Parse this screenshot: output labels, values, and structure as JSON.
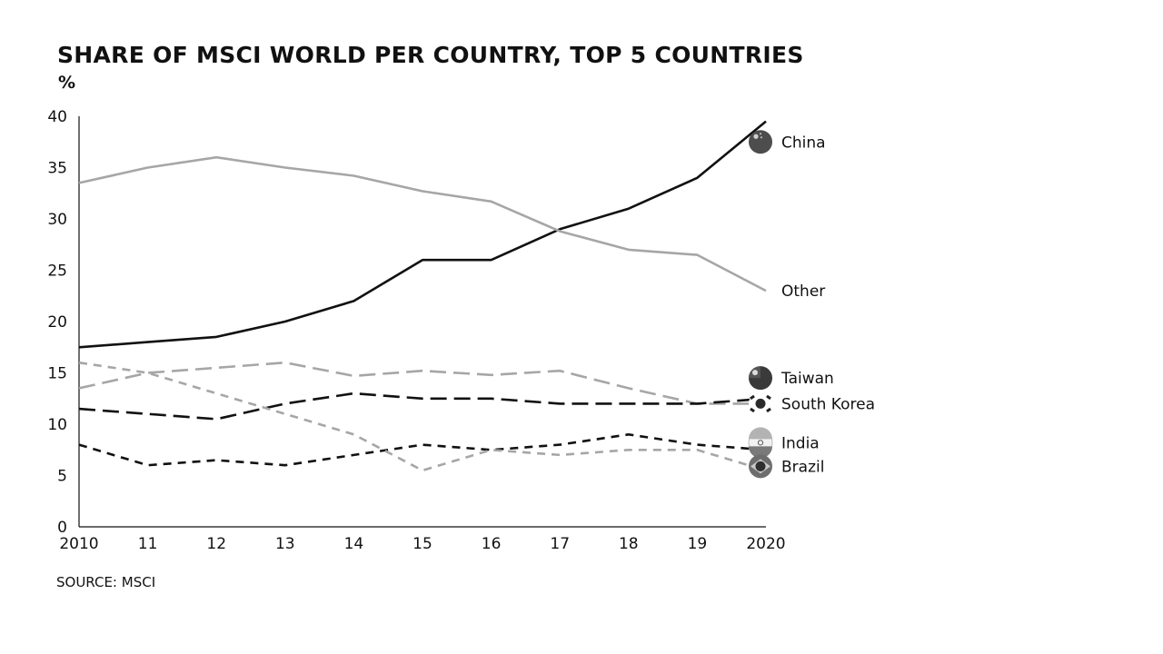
{
  "title": "SHARE OF MSCI WORLD PER COUNTRY, TOP 5 COUNTRIES",
  "source": "SOURCE: MSCI",
  "chart_data": {
    "type": "line",
    "ylabel": "%",
    "ylim": [
      0,
      40
    ],
    "yticks": [
      0,
      5,
      10,
      15,
      20,
      25,
      30,
      35,
      40
    ],
    "x": [
      2010,
      2011,
      2012,
      2013,
      2014,
      2015,
      2016,
      2017,
      2018,
      2019,
      2020
    ],
    "xtick_labels": [
      "2010",
      "11",
      "12",
      "13",
      "14",
      "15",
      "16",
      "17",
      "18",
      "19",
      "2020"
    ],
    "grid": false,
    "legend": "end-of-line labels",
    "series": [
      {
        "name": "China",
        "values": [
          17.5,
          18,
          18.5,
          20,
          22,
          26,
          26,
          29,
          31,
          34,
          39.5
        ],
        "color": "#111111",
        "dash": "solid",
        "icon": "china-flag-icon"
      },
      {
        "name": "Other",
        "values": [
          33.5,
          35,
          36,
          35,
          34.2,
          32.7,
          31.7,
          28.8,
          27,
          26.5,
          23
        ],
        "color": "#a6a6a6",
        "dash": "solid",
        "icon": ""
      },
      {
        "name": "Taiwan",
        "values": [
          13.5,
          15,
          15.5,
          16,
          14.7,
          15.2,
          14.8,
          15.2,
          13.5,
          12,
          12
        ],
        "color": "#a6a6a6",
        "dash": "long",
        "icon": "taiwan-flag-icon"
      },
      {
        "name": "South Korea",
        "values": [
          11.5,
          11,
          10.5,
          12,
          13,
          12.5,
          12.5,
          12,
          12,
          12,
          12.5
        ],
        "color": "#111111",
        "dash": "long",
        "icon": "south-korea-flag-icon"
      },
      {
        "name": "India",
        "values": [
          8,
          6,
          6.5,
          6,
          7,
          8,
          7.5,
          8,
          9,
          8,
          7.5
        ],
        "color": "#111111",
        "dash": "short",
        "icon": "india-flag-icon"
      },
      {
        "name": "Brazil",
        "values": [
          16,
          15,
          13,
          11,
          9,
          5.5,
          7.5,
          7,
          7.5,
          7.5,
          5.5
        ],
        "color": "#a6a6a6",
        "dash": "short",
        "icon": "brazil-flag-icon"
      }
    ]
  }
}
